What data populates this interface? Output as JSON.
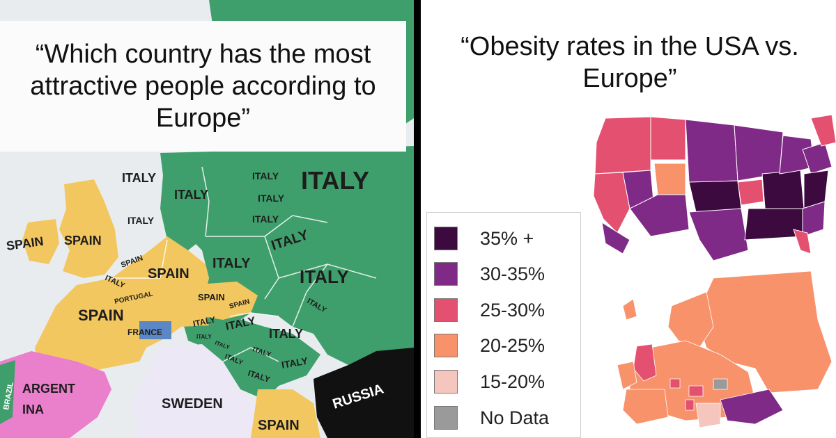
{
  "left_panel": {
    "caption": "“Which country has the most attractive people according to Europe”",
    "colors": {
      "italy": "#3f9f6c",
      "spain": "#f2c760",
      "argentina": "#ea7fcc",
      "sweden": "#ece8f6",
      "russia": "#111111",
      "france": "#5b87c6",
      "sea": "#e9ecef"
    },
    "labels": {
      "italy_big": "ITALY",
      "italy_1": "ITALY",
      "italy_2": "ITALY",
      "italy_3": "ITALY",
      "italy_4": "ITALY",
      "italy_5": "ITALY",
      "italy_6": "ITALY",
      "italy_7": "ITALY",
      "italy_8": "ITALY",
      "italy_9": "ITALY",
      "italy_10": "ITALY",
      "italy_11": "ITALY",
      "italy_12": "ITALY",
      "italy_13": "ITALY",
      "italy_14": "ITALY",
      "italy_15": "ITALY",
      "italy_16": "ITALY",
      "italy_17": "ITALY",
      "italy_18": "ITALY",
      "italy_19": "ITALY",
      "italy_20": "ITALY",
      "spain_1": "SPAIN",
      "spain_2": "SPAIN",
      "spain_3": "SPAIN",
      "spain_4": "SPAIN",
      "spain_5": "SPAIN",
      "spain_6": "SPAIN",
      "spain_7": "SPAIN",
      "spain_8": "SPAIN",
      "portugal": "PORTUGAL",
      "france": "FRANCE",
      "argentina_1": "ARGENT",
      "argentina_2": "INA",
      "brazil": "BRAZIL",
      "sweden": "SWEDEN",
      "russia": "RUSSIA"
    }
  },
  "right_panel": {
    "caption": "“Obesity rates in the USA vs. Europe”",
    "legend": [
      {
        "label": "35% +",
        "color": "#3d0a3f"
      },
      {
        "label": "30-35%",
        "color": "#7f2a86"
      },
      {
        "label": "25-30%",
        "color": "#e4506f"
      },
      {
        "label": "20-25%",
        "color": "#f7926b"
      },
      {
        "label": "15-20%",
        "color": "#f4c6bd"
      },
      {
        "label": "No Data",
        "color": "#9a9a9a"
      }
    ]
  }
}
